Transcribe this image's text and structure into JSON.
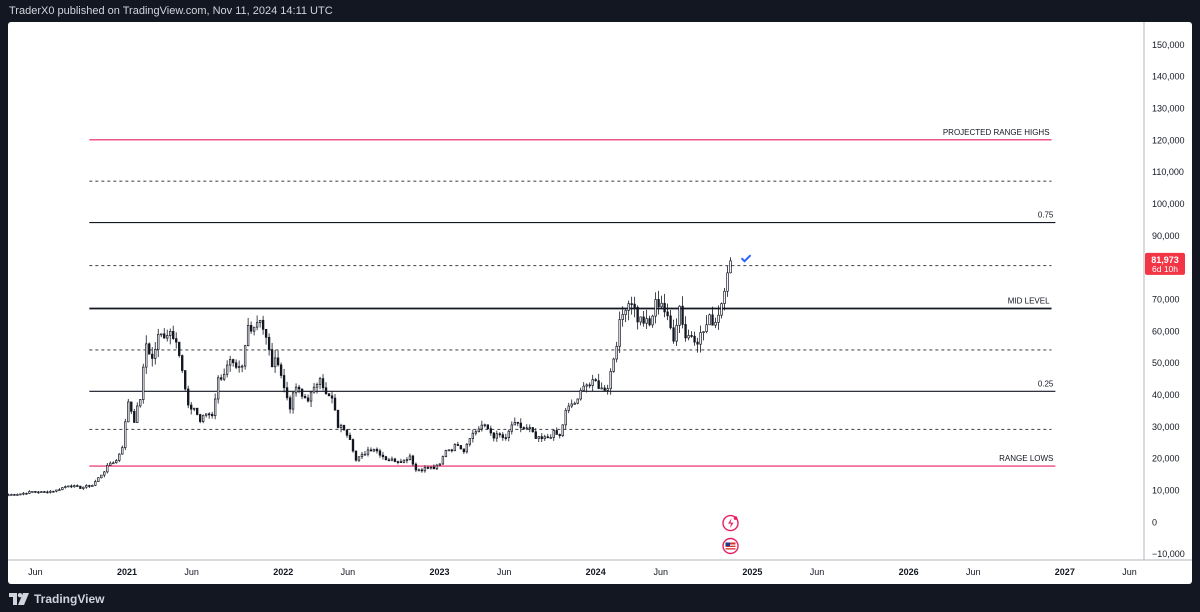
{
  "header": {
    "publisher": "TraderX0 published on TradingView.com, Nov 11, 2024 14:11 UTC"
  },
  "footer": {
    "brand": "TradingView"
  },
  "colors": {
    "candle": "#131722",
    "level_pink": "#e91e63",
    "level_black": "#131722",
    "dashed": "#555555",
    "price_badge": "#f23645",
    "check": "#2962ff"
  },
  "chart_data": {
    "type": "candlestick",
    "title": "",
    "ylim": [
      -12000,
      157000
    ],
    "y_ticks": [
      -10000,
      0,
      10000,
      20000,
      30000,
      40000,
      50000,
      60000,
      70000,
      80000,
      90000,
      100000,
      110000,
      120000,
      130000,
      140000,
      150000
    ],
    "y_tick_labels": [
      "−10,000",
      "0",
      "10,000",
      "20,000",
      "30,000",
      "40,000",
      "50,000",
      "60,000",
      "70,000",
      "80,000",
      "90,000",
      "100,000",
      "110,000",
      "120,000",
      "130,000",
      "140,000",
      "150,000"
    ],
    "x_range": [
      "2020-03-29",
      "2027-07-05"
    ],
    "x_ticks": [
      {
        "date": "2020-06-01",
        "label": "Jun"
      },
      {
        "date": "2021-01-01",
        "label": "2021"
      },
      {
        "date": "2021-06-01",
        "label": "Jun"
      },
      {
        "date": "2022-01-01",
        "label": "2022"
      },
      {
        "date": "2022-06-01",
        "label": "Jun"
      },
      {
        "date": "2023-01-01",
        "label": "2023"
      },
      {
        "date": "2023-06-01",
        "label": "Jun"
      },
      {
        "date": "2024-01-01",
        "label": "2024"
      },
      {
        "date": "2024-06-01",
        "label": "Jun"
      },
      {
        "date": "2025-01-01",
        "label": "2025"
      },
      {
        "date": "2025-06-01",
        "label": "Jun"
      },
      {
        "date": "2026-01-01",
        "label": "2026"
      },
      {
        "date": "2026-06-01",
        "label": "Jun"
      },
      {
        "date": "2027-01-01",
        "label": "2027"
      },
      {
        "date": "2027-06-01",
        "label": "Jun"
      }
    ],
    "levels": [
      {
        "price": 120000,
        "label": "PROJECTED RANGE HIGHS",
        "style": "solid",
        "color": "#e91e63",
        "from": "2020-10-05",
        "to": "2026-12-01"
      },
      {
        "price": 107000,
        "label": "",
        "style": "dashed",
        "color": "#555555",
        "from": "2020-10-05",
        "to": "2026-12-01"
      },
      {
        "price": 94000,
        "label": "0.75",
        "style": "solid",
        "color": "#131722",
        "from": "2020-10-05",
        "to": "2026-12-10"
      },
      {
        "price": 80500,
        "label": "",
        "style": "dashed",
        "color": "#555555",
        "from": "2020-10-05",
        "to": "2026-12-01"
      },
      {
        "price": 67000,
        "label": "MID LEVEL",
        "style": "bold",
        "color": "#131722",
        "from": "2020-10-05",
        "to": "2026-12-01"
      },
      {
        "price": 54000,
        "label": "",
        "style": "dashed",
        "color": "#555555",
        "from": "2020-10-05",
        "to": "2026-12-01"
      },
      {
        "price": 41000,
        "label": "0.25",
        "style": "solid",
        "color": "#131722",
        "from": "2020-10-05",
        "to": "2026-12-10"
      },
      {
        "price": 29000,
        "label": "",
        "style": "dashed",
        "color": "#555555",
        "from": "2020-10-05",
        "to": "2026-12-01"
      },
      {
        "price": 17500,
        "label": "RANGE LOWS",
        "style": "solid",
        "color": "#e91e63",
        "from": "2020-10-05",
        "to": "2026-12-10"
      }
    ],
    "price_badge": {
      "value": 81973,
      "label": "81,973",
      "sublabel": "6d 10h"
    },
    "weekly_close": [
      [
        "2020-03-30",
        8500
      ],
      [
        "2020-04-27",
        8800
      ],
      [
        "2020-05-25",
        9500
      ],
      [
        "2020-06-22",
        9300
      ],
      [
        "2020-07-20",
        9900
      ],
      [
        "2020-08-17",
        11500
      ],
      [
        "2020-09-14",
        10700
      ],
      [
        "2020-10-12",
        11500
      ],
      [
        "2020-10-26",
        13700
      ],
      [
        "2020-11-09",
        16000
      ],
      [
        "2020-11-23",
        18500
      ],
      [
        "2020-12-07",
        19200
      ],
      [
        "2020-12-21",
        23800
      ],
      [
        "2021-01-04",
        38000
      ],
      [
        "2021-01-18",
        32000
      ],
      [
        "2021-02-01",
        39000
      ],
      [
        "2021-02-15",
        56000
      ],
      [
        "2021-03-01",
        51000
      ],
      [
        "2021-03-15",
        58000
      ],
      [
        "2021-03-29",
        59000
      ],
      [
        "2021-04-12",
        60000
      ],
      [
        "2021-04-26",
        58000
      ],
      [
        "2021-05-10",
        47000
      ],
      [
        "2021-05-24",
        35700
      ],
      [
        "2021-06-07",
        35800
      ],
      [
        "2021-06-21",
        31600
      ],
      [
        "2021-07-05",
        34000
      ],
      [
        "2021-07-19",
        33800
      ],
      [
        "2021-08-02",
        44600
      ],
      [
        "2021-08-16",
        47000
      ],
      [
        "2021-08-30",
        49900
      ],
      [
        "2021-09-13",
        47300
      ],
      [
        "2021-09-27",
        48200
      ],
      [
        "2021-10-11",
        61500
      ],
      [
        "2021-10-25",
        61800
      ],
      [
        "2021-11-08",
        64400
      ],
      [
        "2021-11-22",
        57300
      ],
      [
        "2021-12-06",
        49400
      ],
      [
        "2021-12-20",
        50800
      ],
      [
        "2022-01-03",
        41900
      ],
      [
        "2022-01-17",
        36300
      ],
      [
        "2022-01-31",
        42400
      ],
      [
        "2022-02-14",
        39200
      ],
      [
        "2022-02-28",
        38800
      ],
      [
        "2022-03-14",
        41300
      ],
      [
        "2022-03-28",
        46300
      ],
      [
        "2022-04-11",
        39700
      ],
      [
        "2022-04-25",
        38500
      ],
      [
        "2022-05-09",
        30100
      ],
      [
        "2022-05-23",
        29400
      ],
      [
        "2022-06-06",
        26500
      ],
      [
        "2022-06-20",
        19300
      ],
      [
        "2022-07-04",
        20800
      ],
      [
        "2022-07-18",
        22600
      ],
      [
        "2022-08-01",
        23100
      ],
      [
        "2022-08-15",
        21500
      ],
      [
        "2022-08-29",
        19800
      ],
      [
        "2022-09-12",
        19400
      ],
      [
        "2022-09-26",
        19300
      ],
      [
        "2022-10-10",
        19200
      ],
      [
        "2022-10-24",
        20800
      ],
      [
        "2022-11-07",
        16300
      ],
      [
        "2022-11-21",
        16500
      ],
      [
        "2022-12-05",
        17100
      ],
      [
        "2022-12-19",
        16800
      ],
      [
        "2023-01-02",
        17900
      ],
      [
        "2023-01-16",
        22700
      ],
      [
        "2023-01-30",
        22900
      ],
      [
        "2023-02-13",
        24600
      ],
      [
        "2023-02-27",
        22400
      ],
      [
        "2023-03-13",
        26900
      ],
      [
        "2023-03-27",
        28400
      ],
      [
        "2023-04-10",
        30300
      ],
      [
        "2023-04-24",
        29200
      ],
      [
        "2023-05-08",
        26900
      ],
      [
        "2023-05-22",
        27100
      ],
      [
        "2023-06-05",
        25800
      ],
      [
        "2023-06-19",
        30500
      ],
      [
        "2023-07-03",
        30300
      ],
      [
        "2023-07-17",
        29200
      ],
      [
        "2023-07-31",
        29100
      ],
      [
        "2023-08-14",
        26100
      ],
      [
        "2023-08-28",
        25900
      ],
      [
        "2023-09-11",
        26500
      ],
      [
        "2023-09-25",
        27900
      ],
      [
        "2023-10-09",
        26800
      ],
      [
        "2023-10-23",
        34500
      ],
      [
        "2023-11-06",
        37000
      ],
      [
        "2023-11-20",
        37700
      ],
      [
        "2023-12-04",
        43800
      ],
      [
        "2023-12-18",
        42900
      ],
      [
        "2024-01-01",
        43900
      ],
      [
        "2024-01-15",
        41600
      ],
      [
        "2024-01-29",
        42600
      ],
      [
        "2024-02-12",
        51700
      ],
      [
        "2024-02-26",
        61800
      ],
      [
        "2024-03-11",
        68300
      ],
      [
        "2024-03-25",
        69700
      ],
      [
        "2024-04-08",
        63800
      ],
      [
        "2024-04-22",
        63100
      ],
      [
        "2024-05-06",
        61500
      ],
      [
        "2024-05-20",
        68500
      ],
      [
        "2024-06-03",
        69300
      ],
      [
        "2024-06-17",
        63200
      ],
      [
        "2024-07-01",
        58200
      ],
      [
        "2024-07-15",
        67800
      ],
      [
        "2024-07-29",
        58100
      ],
      [
        "2024-08-12",
        58900
      ],
      [
        "2024-08-26",
        57300
      ],
      [
        "2024-09-09",
        59900
      ],
      [
        "2024-09-23",
        63500
      ],
      [
        "2024-10-07",
        63000
      ],
      [
        "2024-10-21",
        69000
      ],
      [
        "2024-11-04",
        80000
      ],
      [
        "2024-11-11",
        81973
      ]
    ]
  }
}
